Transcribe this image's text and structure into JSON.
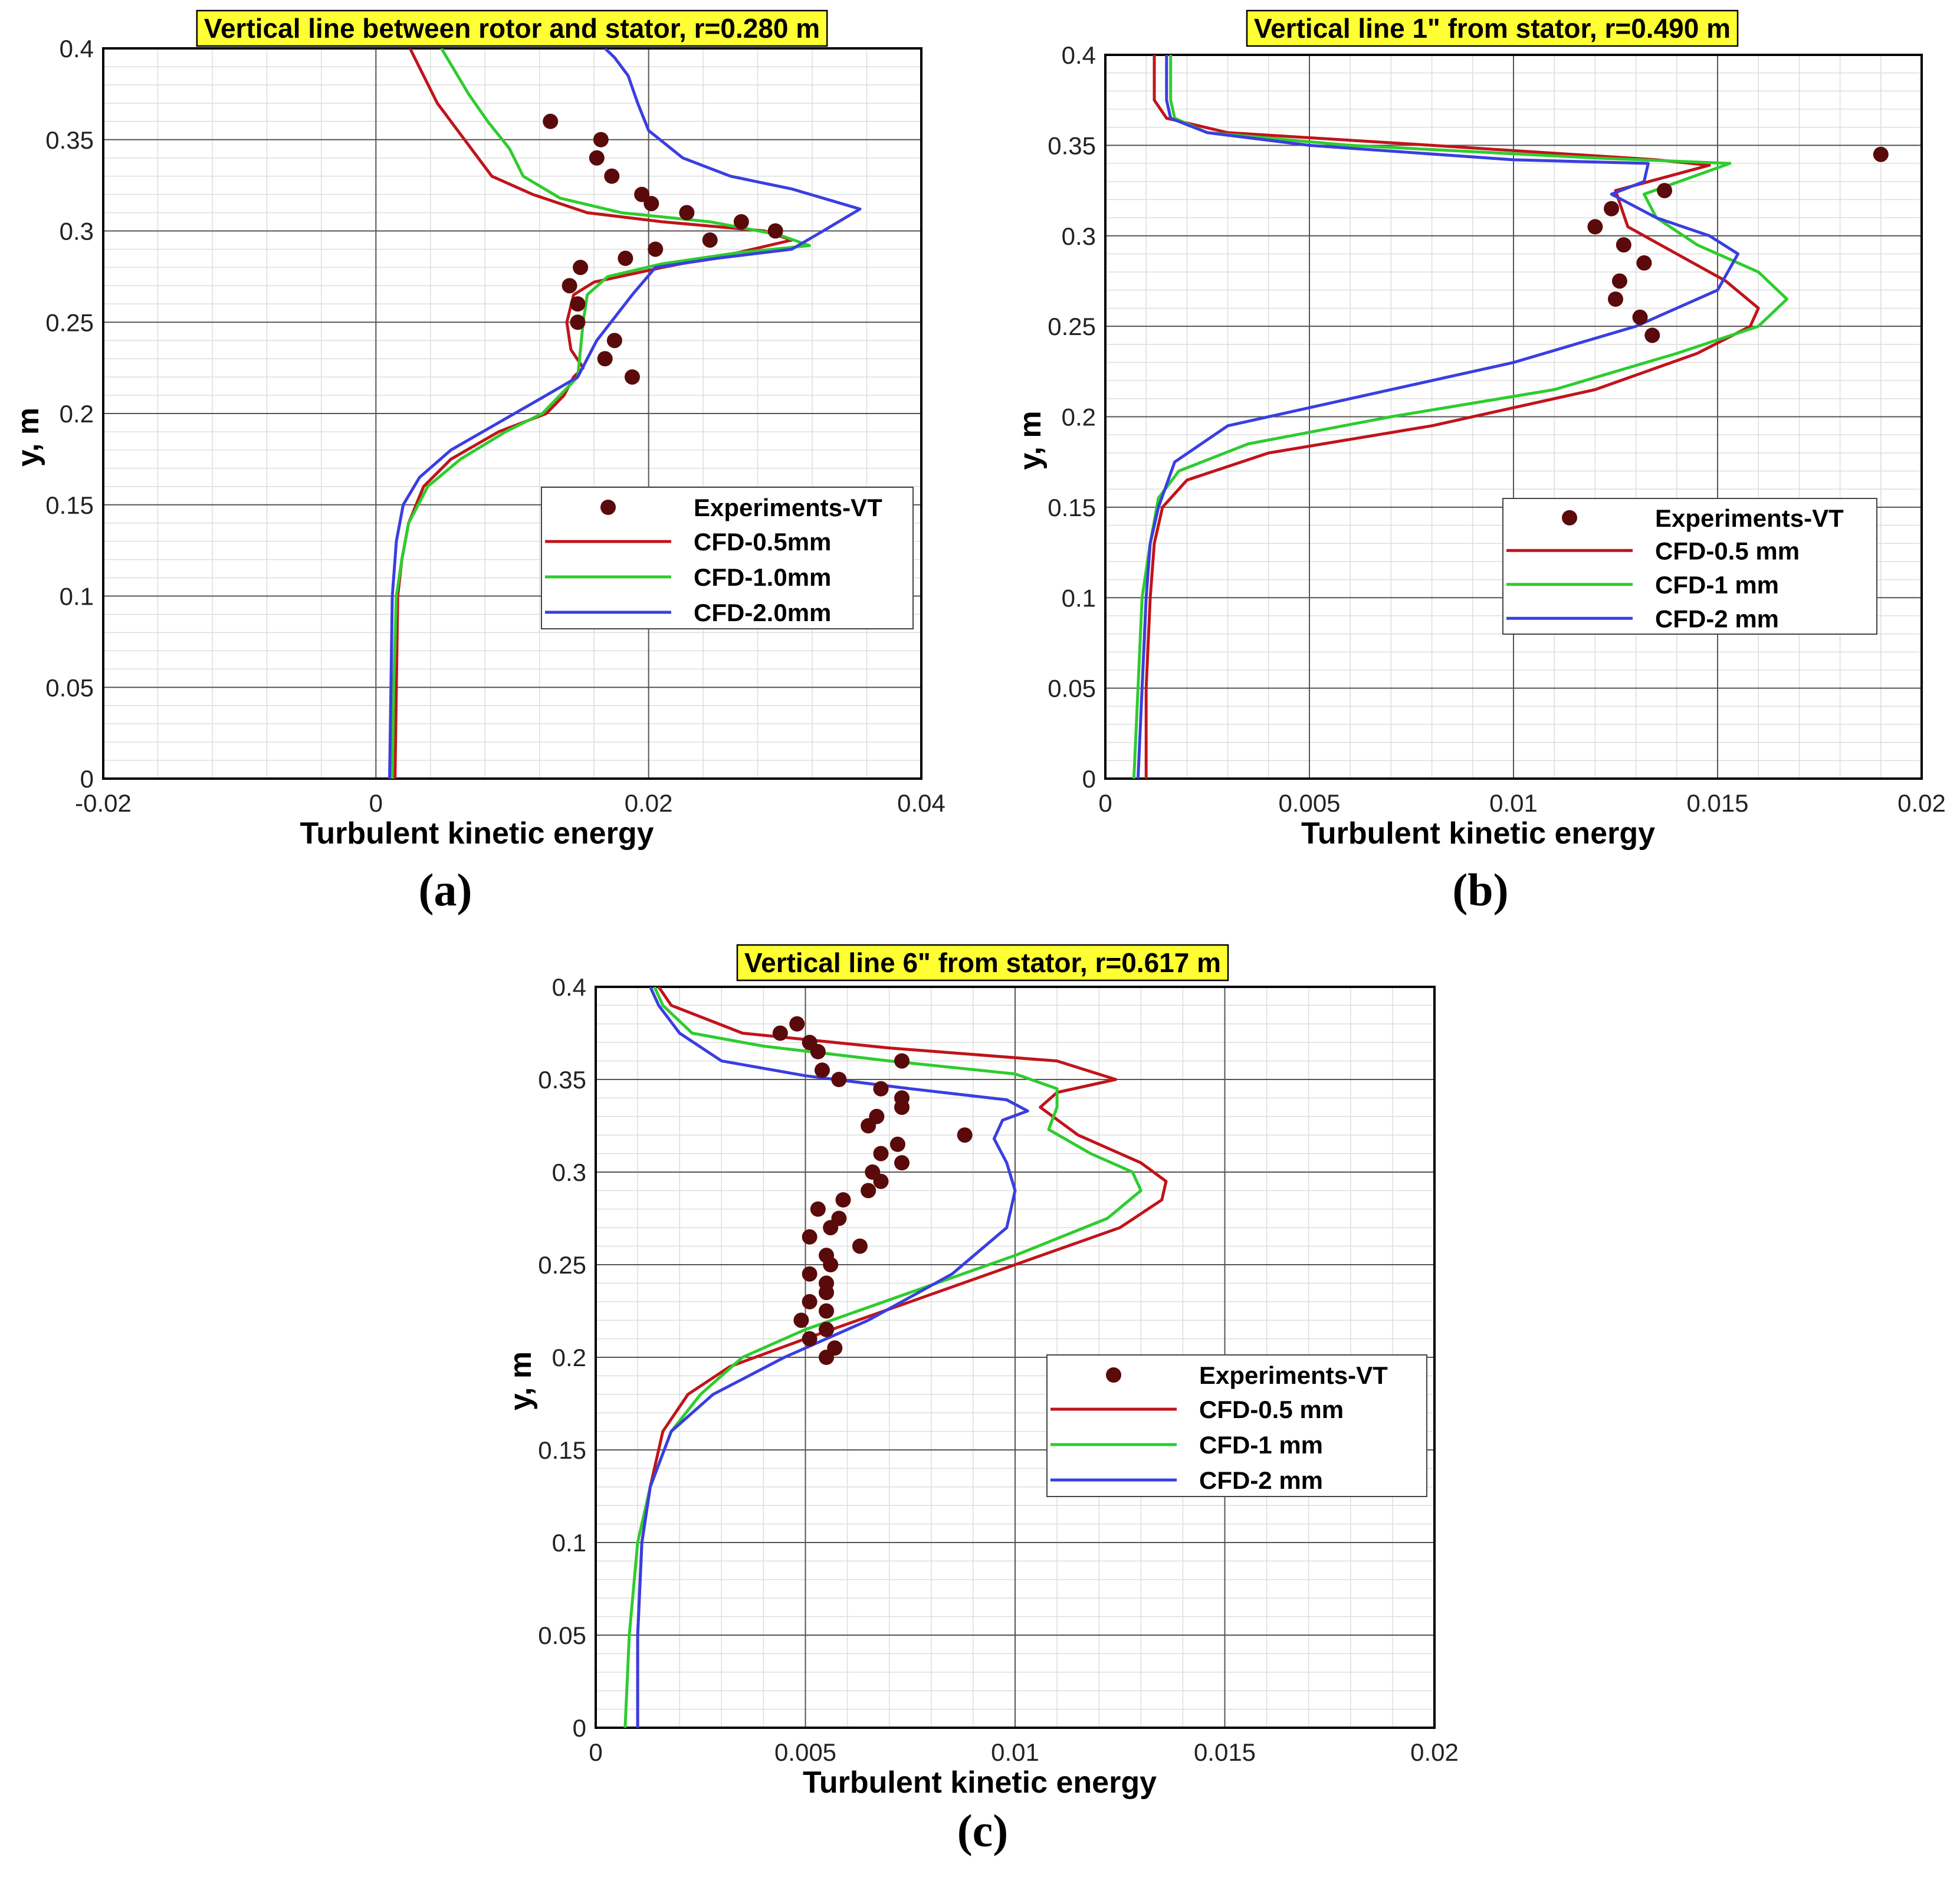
{
  "chart_data": [
    {
      "type": "line",
      "panel_label": "(a)",
      "title": "Vertical line between rotor and stator, r=0.280 m",
      "xlabel": "Turbulent kinetic energy",
      "ylabel": "y, m",
      "xlim": [
        -0.02,
        0.04
      ],
      "ylim": [
        0,
        0.4
      ],
      "xticks": [
        -0.02,
        0,
        0.02,
        0.04
      ],
      "xtick_labels": [
        "-0.02",
        "0",
        "0.02",
        "0.04"
      ],
      "yticks": [
        0,
        0.05,
        0.1,
        0.15,
        0.2,
        0.25,
        0.3,
        0.35,
        0.4
      ],
      "ytick_labels": [
        "0",
        "0.05",
        "0.1",
        "0.15",
        "0.2",
        "0.25",
        "0.3",
        "0.35",
        "0.4"
      ],
      "grid": true,
      "legend_position": "center-right",
      "scatter": {
        "name": "Experiments-VT",
        "color": "#5a0a0a",
        "points": [
          [
            0.0128,
            0.36
          ],
          [
            0.0165,
            0.35
          ],
          [
            0.0162,
            0.34
          ],
          [
            0.0173,
            0.33
          ],
          [
            0.0195,
            0.32
          ],
          [
            0.0202,
            0.315
          ],
          [
            0.0228,
            0.31
          ],
          [
            0.0268,
            0.305
          ],
          [
            0.0293,
            0.3
          ],
          [
            0.0245,
            0.295
          ],
          [
            0.0205,
            0.29
          ],
          [
            0.0183,
            0.285
          ],
          [
            0.015,
            0.28
          ],
          [
            0.0142,
            0.27
          ],
          [
            0.0148,
            0.26
          ],
          [
            0.0148,
            0.25
          ],
          [
            0.0175,
            0.24
          ],
          [
            0.0168,
            0.23
          ],
          [
            0.0188,
            0.22
          ]
        ]
      },
      "series": [
        {
          "name": "CFD-0.5mm",
          "color": "#c0141a",
          "x": [
            0.0014,
            0.0015,
            0.0016,
            0.0019,
            0.0024,
            0.0035,
            0.0055,
            0.009,
            0.0125,
            0.0138,
            0.0145,
            0.0152,
            0.0143,
            0.014,
            0.0145,
            0.016,
            0.021,
            0.0265,
            0.0305,
            0.0285,
            0.021,
            0.0155,
            0.0115,
            0.0085,
            0.0075,
            0.006,
            0.0045,
            0.0035,
            0.0025
          ],
          "y": [
            0,
            0.05,
            0.1,
            0.12,
            0.14,
            0.16,
            0.175,
            0.19,
            0.2,
            0.21,
            0.22,
            0.225,
            0.235,
            0.25,
            0.265,
            0.272,
            0.28,
            0.288,
            0.295,
            0.3,
            0.305,
            0.31,
            0.32,
            0.33,
            0.34,
            0.355,
            0.37,
            0.385,
            0.4
          ]
        },
        {
          "name": "CFD-1.0mm",
          "color": "#2ecc2e",
          "x": [
            0.0012,
            0.0013,
            0.0015,
            0.0019,
            0.0024,
            0.0038,
            0.0062,
            0.0095,
            0.0122,
            0.0135,
            0.0148,
            0.015,
            0.0152,
            0.0155,
            0.017,
            0.021,
            0.0265,
            0.0318,
            0.0295,
            0.0245,
            0.018,
            0.0135,
            0.0108,
            0.0098,
            0.0082,
            0.0068,
            0.0048
          ],
          "y": [
            0,
            0.05,
            0.1,
            0.12,
            0.14,
            0.16,
            0.175,
            0.19,
            0.2,
            0.21,
            0.22,
            0.235,
            0.25,
            0.265,
            0.275,
            0.282,
            0.288,
            0.292,
            0.298,
            0.305,
            0.31,
            0.318,
            0.33,
            0.345,
            0.36,
            0.375,
            0.4
          ]
        },
        {
          "name": "CFD-2.0mm",
          "color": "#3a3ee0",
          "x": [
            0.001,
            0.0011,
            0.0012,
            0.0015,
            0.002,
            0.0032,
            0.0055,
            0.009,
            0.0125,
            0.0148,
            0.0162,
            0.0188,
            0.0205,
            0.025,
            0.0305,
            0.0328,
            0.0355,
            0.0305,
            0.026,
            0.0225,
            0.02,
            0.0192,
            0.0185,
            0.0175,
            0.0168
          ],
          "y": [
            0,
            0.05,
            0.1,
            0.13,
            0.15,
            0.165,
            0.18,
            0.195,
            0.21,
            0.22,
            0.24,
            0.265,
            0.28,
            0.285,
            0.29,
            0.3,
            0.312,
            0.323,
            0.33,
            0.34,
            0.355,
            0.37,
            0.385,
            0.395,
            0.4
          ]
        }
      ]
    },
    {
      "type": "line",
      "panel_label": "(b)",
      "title": "Vertical line 1\" from stator, r=0.490 m",
      "xlabel": "Turbulent kinetic energy",
      "ylabel": "y, m",
      "xlim": [
        0,
        0.02
      ],
      "ylim": [
        0,
        0.4
      ],
      "xticks": [
        0,
        0.005,
        0.01,
        0.015,
        0.02
      ],
      "xtick_labels": [
        "0",
        "0.005",
        "0.01",
        "0.015",
        "0.02"
      ],
      "yticks": [
        0,
        0.05,
        0.1,
        0.15,
        0.2,
        0.25,
        0.3,
        0.35,
        0.4
      ],
      "ytick_labels": [
        "0",
        "0.05",
        "0.1",
        "0.15",
        "0.2",
        "0.25",
        "0.3",
        "0.35",
        "0.4"
      ],
      "grid": true,
      "legend_position": "center-right",
      "scatter": {
        "name": "Experiments-VT",
        "color": "#5a0a0a",
        "points": [
          [
            0.019,
            0.345
          ],
          [
            0.0137,
            0.325
          ],
          [
            0.0124,
            0.315
          ],
          [
            0.012,
            0.305
          ],
          [
            0.0127,
            0.295
          ],
          [
            0.0132,
            0.285
          ],
          [
            0.0126,
            0.275
          ],
          [
            0.0125,
            0.265
          ],
          [
            0.0131,
            0.255
          ],
          [
            0.0134,
            0.245
          ]
        ]
      },
      "series": [
        {
          "name": "CFD-0.5 mm",
          "color": "#c0141a",
          "x": [
            0.001,
            0.001,
            0.0011,
            0.0012,
            0.0014,
            0.002,
            0.004,
            0.008,
            0.012,
            0.0145,
            0.0158,
            0.016,
            0.0152,
            0.014,
            0.0128,
            0.0125,
            0.0148,
            0.0135,
            0.008,
            0.003,
            0.0015,
            0.0012,
            0.0012
          ],
          "y": [
            0,
            0.05,
            0.1,
            0.13,
            0.15,
            0.165,
            0.18,
            0.195,
            0.215,
            0.235,
            0.25,
            0.26,
            0.275,
            0.29,
            0.305,
            0.325,
            0.339,
            0.342,
            0.35,
            0.357,
            0.365,
            0.375,
            0.4
          ]
        },
        {
          "name": "CFD-1 mm",
          "color": "#2ecc2e",
          "x": [
            0.0007,
            0.0008,
            0.0009,
            0.0011,
            0.0013,
            0.0018,
            0.0035,
            0.007,
            0.011,
            0.014,
            0.016,
            0.0167,
            0.016,
            0.0145,
            0.0135,
            0.0132,
            0.0153,
            0.012,
            0.006,
            0.0025,
            0.0017,
            0.0016,
            0.0016
          ],
          "y": [
            0,
            0.05,
            0.1,
            0.13,
            0.155,
            0.17,
            0.185,
            0.2,
            0.215,
            0.235,
            0.25,
            0.265,
            0.28,
            0.295,
            0.31,
            0.323,
            0.34,
            0.343,
            0.35,
            0.357,
            0.365,
            0.375,
            0.4
          ]
        },
        {
          "name": "CFD-2 mm",
          "color": "#3a3ee0",
          "x": [
            0.0008,
            0.0009,
            0.001,
            0.0011,
            0.0013,
            0.0017,
            0.003,
            0.006,
            0.01,
            0.013,
            0.015,
            0.0155,
            0.0148,
            0.0135,
            0.0124,
            0.0132,
            0.0133,
            0.01,
            0.005,
            0.0025,
            0.0016,
            0.0015,
            0.0015
          ],
          "y": [
            0,
            0.05,
            0.1,
            0.13,
            0.15,
            0.175,
            0.195,
            0.21,
            0.23,
            0.25,
            0.27,
            0.29,
            0.3,
            0.31,
            0.323,
            0.33,
            0.34,
            0.342,
            0.35,
            0.357,
            0.365,
            0.375,
            0.4
          ]
        }
      ]
    },
    {
      "type": "line",
      "panel_label": "(c)",
      "title": "Vertical line 6\" from stator, r=0.617 m",
      "xlabel": "Turbulent kinetic energy",
      "ylabel": "y, m",
      "xlim": [
        0,
        0.02
      ],
      "ylim": [
        0,
        0.4
      ],
      "xticks": [
        0,
        0.005,
        0.01,
        0.015,
        0.02
      ],
      "xtick_labels": [
        "0",
        "0.005",
        "0.01",
        "0.015",
        "0.02"
      ],
      "yticks": [
        0,
        0.05,
        0.1,
        0.15,
        0.2,
        0.25,
        0.3,
        0.35,
        0.4
      ],
      "ytick_labels": [
        "0",
        "0.05",
        "0.1",
        "0.15",
        "0.2",
        "0.25",
        "0.3",
        "0.35",
        "0.4"
      ],
      "grid": true,
      "legend_position": "center-right",
      "scatter": {
        "name": "Experiments-VT",
        "color": "#5a0a0a",
        "points": [
          [
            0.0048,
            0.38
          ],
          [
            0.0044,
            0.375
          ],
          [
            0.0051,
            0.37
          ],
          [
            0.0053,
            0.365
          ],
          [
            0.0073,
            0.36
          ],
          [
            0.0054,
            0.355
          ],
          [
            0.0058,
            0.35
          ],
          [
            0.0068,
            0.345
          ],
          [
            0.0073,
            0.34
          ],
          [
            0.0073,
            0.335
          ],
          [
            0.0067,
            0.33
          ],
          [
            0.0065,
            0.325
          ],
          [
            0.0088,
            0.32
          ],
          [
            0.0072,
            0.315
          ],
          [
            0.0068,
            0.31
          ],
          [
            0.0073,
            0.305
          ],
          [
            0.0066,
            0.3
          ],
          [
            0.0068,
            0.295
          ],
          [
            0.0065,
            0.29
          ],
          [
            0.0059,
            0.285
          ],
          [
            0.0053,
            0.28
          ],
          [
            0.0058,
            0.275
          ],
          [
            0.0056,
            0.27
          ],
          [
            0.0051,
            0.265
          ],
          [
            0.0063,
            0.26
          ],
          [
            0.0055,
            0.255
          ],
          [
            0.0056,
            0.25
          ],
          [
            0.0051,
            0.245
          ],
          [
            0.0055,
            0.24
          ],
          [
            0.0055,
            0.235
          ],
          [
            0.0051,
            0.23
          ],
          [
            0.0055,
            0.225
          ],
          [
            0.0049,
            0.22
          ],
          [
            0.0055,
            0.215
          ],
          [
            0.0051,
            0.21
          ],
          [
            0.0057,
            0.205
          ],
          [
            0.0055,
            0.2
          ]
        ]
      },
      "series": [
        {
          "name": "CFD-0.5 mm",
          "color": "#c0141a",
          "x": [
            0.001,
            0.001,
            0.0011,
            0.0013,
            0.0016,
            0.0022,
            0.0032,
            0.005,
            0.0075,
            0.01,
            0.0125,
            0.0135,
            0.0136,
            0.013,
            0.0115,
            0.0106,
            0.011,
            0.0124,
            0.011,
            0.007,
            0.0035,
            0.0018,
            0.0015
          ],
          "y": [
            0,
            0.05,
            0.1,
            0.13,
            0.16,
            0.18,
            0.195,
            0.21,
            0.23,
            0.25,
            0.27,
            0.285,
            0.295,
            0.305,
            0.32,
            0.335,
            0.343,
            0.35,
            0.36,
            0.367,
            0.375,
            0.39,
            0.4
          ]
        },
        {
          "name": "CFD-1 mm",
          "color": "#2ecc2e",
          "x": [
            0.0007,
            0.0008,
            0.001,
            0.0013,
            0.0018,
            0.0025,
            0.0035,
            0.005,
            0.0075,
            0.01,
            0.0122,
            0.013,
            0.0128,
            0.0118,
            0.0108,
            0.011,
            0.011,
            0.01,
            0.007,
            0.004,
            0.0023,
            0.0016,
            0.0014
          ],
          "y": [
            0,
            0.05,
            0.1,
            0.13,
            0.16,
            0.18,
            0.2,
            0.215,
            0.235,
            0.255,
            0.275,
            0.29,
            0.3,
            0.31,
            0.323,
            0.335,
            0.345,
            0.353,
            0.36,
            0.368,
            0.375,
            0.39,
            0.4
          ]
        },
        {
          "name": "CFD-2 mm",
          "color": "#3a3ee0",
          "x": [
            0.001,
            0.001,
            0.0011,
            0.0013,
            0.0018,
            0.0028,
            0.0045,
            0.0065,
            0.0085,
            0.0098,
            0.01,
            0.0098,
            0.0095,
            0.0097,
            0.0103,
            0.0098,
            0.0075,
            0.005,
            0.003,
            0.002,
            0.0015,
            0.0013
          ],
          "y": [
            0,
            0.05,
            0.1,
            0.13,
            0.16,
            0.18,
            0.2,
            0.22,
            0.245,
            0.27,
            0.29,
            0.305,
            0.318,
            0.328,
            0.333,
            0.339,
            0.345,
            0.352,
            0.36,
            0.375,
            0.39,
            0.4
          ]
        }
      ]
    }
  ]
}
